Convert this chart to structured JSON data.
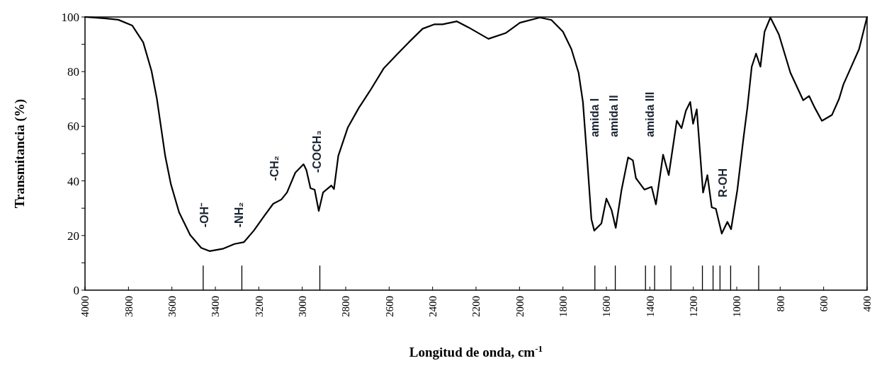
{
  "chart_data": {
    "type": "line",
    "xlabel": "Longitud de onda, cm$^{-1}$",
    "ylabel": "Transmitancia (%)",
    "xlim": [
      4000,
      400
    ],
    "xticks": [
      4000,
      3800,
      3600,
      3400,
      3200,
      3000,
      2800,
      2600,
      2400,
      2200,
      2000,
      1800,
      1600,
      1400,
      1200,
      1000,
      800,
      600,
      400
    ],
    "ylim": [
      0,
      100
    ],
    "yticks": [
      0,
      {
        "value": 10,
        "label": null
      },
      20,
      {
        "value": 30,
        "label": null
      },
      40,
      {
        "value": 50,
        "label": null
      },
      60,
      {
        "value": 70,
        "label": null
      },
      80,
      {
        "value": 90,
        "label": null
      },
      100
    ],
    "grid": false,
    "marker": "none",
    "line_style": "solid",
    "series": [
      {
        "color": "#000000",
        "x": [
          4000,
          3911,
          3847,
          3783,
          3732,
          3694,
          3669,
          3650,
          3631,
          3605,
          3567,
          3516,
          3465,
          3427,
          3363,
          3312,
          3268,
          3223,
          3172,
          3134,
          3096,
          3070,
          3032,
          2994,
          2981,
          2962,
          2943,
          2924,
          2904,
          2866,
          2854,
          2834,
          2790,
          2739,
          2688,
          2624,
          2561,
          2510,
          2446,
          2393,
          2354,
          2288,
          2235,
          2143,
          2064,
          1998,
          1906,
          1853,
          1800,
          1761,
          1728,
          1708,
          1688,
          1669,
          1656,
          1623,
          1600,
          1576,
          1557,
          1530,
          1500,
          1478,
          1464,
          1425,
          1392,
          1372,
          1339,
          1313,
          1276,
          1254,
          1234,
          1214,
          1201,
          1184,
          1155,
          1135,
          1115,
          1096,
          1069,
          1043,
          1026,
          997,
          970,
          951,
          931,
          911,
          891,
          872,
          845,
          806,
          753,
          694,
          667,
          641,
          608,
          562,
          529,
          509,
          470,
          437,
          410,
          400
        ],
        "values": [
          100,
          99.5,
          99,
          96.9,
          90.7,
          80.3,
          70,
          59.6,
          49.2,
          38.9,
          28.5,
          20.2,
          15.5,
          14.3,
          15.2,
          16.9,
          17.6,
          21.8,
          27.5,
          31.6,
          33.2,
          35.8,
          43,
          46.1,
          44,
          37.3,
          36.8,
          29,
          35.8,
          38.3,
          37,
          49.2,
          59.6,
          66.8,
          73,
          81.3,
          86.5,
          90.7,
          95.7,
          97.3,
          97.3,
          98.4,
          96.2,
          92,
          94.1,
          97.9,
          99.8,
          98.9,
          94.6,
          88.2,
          79.6,
          68.9,
          47.5,
          26,
          21.8,
          24.4,
          33.5,
          29.3,
          22.8,
          36.8,
          48.6,
          47.5,
          41,
          36.8,
          37.8,
          31.4,
          49.6,
          42.1,
          62,
          59.3,
          65.7,
          68.9,
          60.9,
          66.2,
          35.7,
          42.1,
          30.3,
          29.8,
          20.7,
          25,
          22.3,
          36.8,
          55,
          66.8,
          81.8,
          86.6,
          81.8,
          94.6,
          99.8,
          93.6,
          79.6,
          69.5,
          71.1,
          66.8,
          62,
          64.1,
          70,
          75.3,
          82.3,
          88.2,
          96.8,
          100
        ]
      }
    ],
    "ref_lines": [
      {
        "axis": "x",
        "value": 3456
      },
      {
        "axis": "x",
        "value": 3278
      },
      {
        "axis": "x",
        "value": 2919
      },
      {
        "axis": "x",
        "value": 1653
      },
      {
        "axis": "x",
        "value": 1559
      },
      {
        "axis": "x",
        "value": 1420
      },
      {
        "axis": "x",
        "value": 1378
      },
      {
        "axis": "x",
        "value": 1303
      },
      {
        "axis": "x",
        "value": 1158
      },
      {
        "axis": "x",
        "value": 1109
      },
      {
        "axis": "x",
        "value": 1077
      },
      {
        "axis": "x",
        "value": 1028
      },
      {
        "axis": "x",
        "value": 899
      }
    ],
    "annotations": [
      "-OH⁻",
      "-NH₂",
      "-CH₂",
      "-COCH₃",
      "amida I",
      "amida II",
      "amida III",
      "R-OH"
    ]
  }
}
